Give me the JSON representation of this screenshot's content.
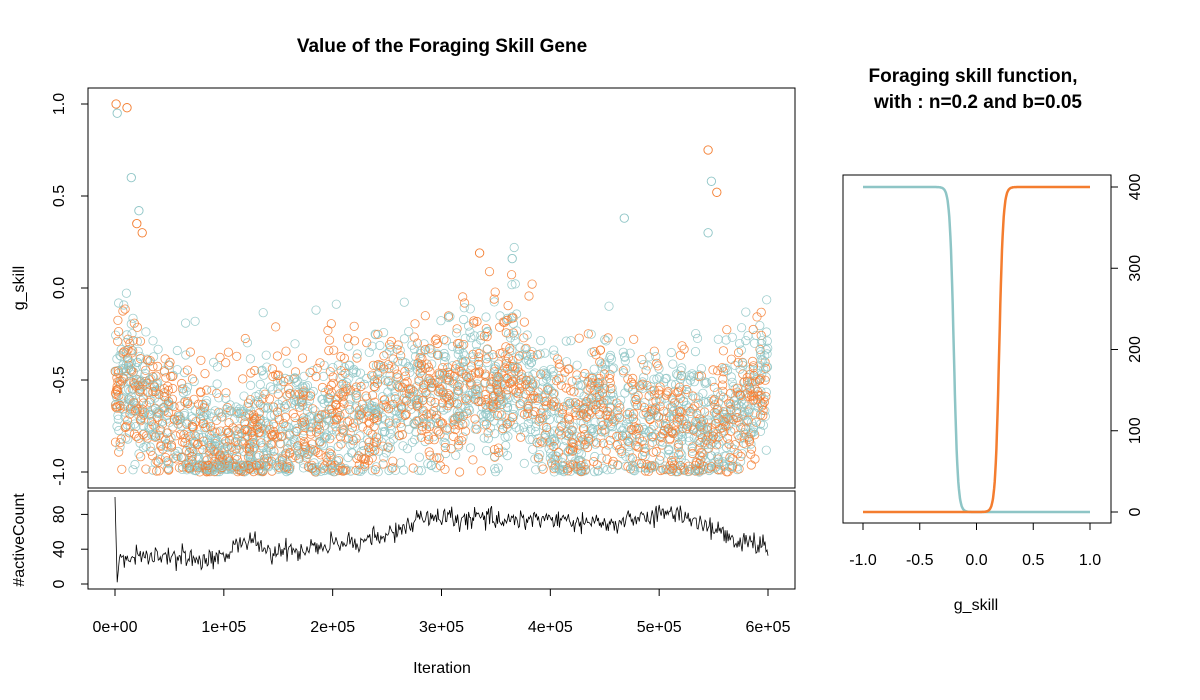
{
  "main_plot": {
    "title": "Value of the Foraging Skill Gene",
    "ylabel": "g_skill",
    "xlabel": "Iteration"
  },
  "side_plot": {
    "title_line1": "Foraging skill function,",
    "title_line2": "with : n=0.2 and b=0.05",
    "xlabel": "g_skill"
  },
  "colors": {
    "orange": "#F47D2F",
    "teal": "#8EC5C6",
    "line": "#000000"
  },
  "chart_data": [
    {
      "type": "scatter",
      "title": "Value of the Foraging Skill Gene",
      "xlabel": "Iteration",
      "ylabel": "g_skill",
      "xlim": [
        0,
        600000
      ],
      "ylim": [
        -1.0,
        1.0
      ],
      "x_ticks": [
        0,
        100000,
        200000,
        300000,
        400000,
        500000,
        600000
      ],
      "x_tick_labels": [
        "0e+00",
        "1e+05",
        "2e+05",
        "3e+05",
        "4e+05",
        "5e+05",
        "6e+05"
      ],
      "y_ticks": [
        -1.0,
        -0.5,
        0.0,
        0.5,
        1.0
      ],
      "y_tick_labels": [
        "-1.0",
        "-0.5",
        "0.0",
        "0.5",
        "1.0"
      ],
      "series": [
        {
          "color": "#F47D2F"
        },
        {
          "color": "#8EC5C6"
        }
      ],
      "trend_points": [
        [
          0,
          -0.6
        ],
        [
          10000,
          -0.5
        ],
        [
          25000,
          -0.6
        ],
        [
          50000,
          -0.7
        ],
        [
          75000,
          -0.85
        ],
        [
          100000,
          -0.9
        ],
        [
          125000,
          -0.8
        ],
        [
          150000,
          -0.75
        ],
        [
          175000,
          -0.8
        ],
        [
          200000,
          -0.75
        ],
        [
          225000,
          -0.7
        ],
        [
          250000,
          -0.65
        ],
        [
          275000,
          -0.55
        ],
        [
          300000,
          -0.6
        ],
        [
          325000,
          -0.5
        ],
        [
          350000,
          -0.55
        ],
        [
          375000,
          -0.45
        ],
        [
          400000,
          -0.7
        ],
        [
          425000,
          -0.8
        ],
        [
          450000,
          -0.6
        ],
        [
          475000,
          -0.75
        ],
        [
          500000,
          -0.7
        ],
        [
          525000,
          -0.75
        ],
        [
          550000,
          -0.8
        ],
        [
          575000,
          -0.7
        ],
        [
          600000,
          -0.45
        ]
      ],
      "outliers": [
        [
          1000,
          1.0
        ],
        [
          2000,
          0.95
        ],
        [
          11000,
          0.98
        ],
        [
          15000,
          0.6
        ],
        [
          20000,
          0.35
        ],
        [
          22000,
          0.42
        ],
        [
          25000,
          0.3
        ],
        [
          468000,
          0.38
        ],
        [
          545000,
          0.75
        ],
        [
          548000,
          0.58
        ],
        [
          553000,
          0.52
        ],
        [
          545000,
          0.3
        ],
        [
          335000,
          0.19
        ],
        [
          365000,
          0.16
        ]
      ]
    },
    {
      "type": "line",
      "xlim": [
        0,
        600000
      ],
      "ylim": [
        0,
        100
      ],
      "ylabel": "#activeCount",
      "y_ticks": [
        0,
        40,
        80
      ],
      "y_tick_labels": [
        "0",
        "40",
        "80"
      ],
      "keypoints": [
        [
          0,
          100
        ],
        [
          2000,
          2
        ],
        [
          5000,
          30
        ],
        [
          50000,
          30
        ],
        [
          100000,
          30
        ],
        [
          110000,
          45
        ],
        [
          120000,
          50
        ],
        [
          150000,
          35
        ],
        [
          200000,
          45
        ],
        [
          250000,
          55
        ],
        [
          280000,
          75
        ],
        [
          300000,
          75
        ],
        [
          350000,
          75
        ],
        [
          400000,
          75
        ],
        [
          450000,
          68
        ],
        [
          500000,
          80
        ],
        [
          520000,
          80
        ],
        [
          550000,
          65
        ],
        [
          570000,
          48
        ],
        [
          600000,
          45
        ]
      ]
    },
    {
      "type": "line",
      "title": "Foraging skill function,\nwith : n=0.2 and b=0.05",
      "xlabel": "g_skill",
      "xlim": [
        -1.0,
        1.0
      ],
      "ylim": [
        0,
        400
      ],
      "x_ticks": [
        -1.0,
        -0.5,
        0.0,
        0.5,
        1.0
      ],
      "x_tick_labels": [
        "-1.0",
        "-0.5",
        "0.0",
        "0.5",
        "1.0"
      ],
      "y_ticks": [
        0,
        100,
        200,
        300,
        400
      ],
      "y_tick_labels": [
        "0",
        "100",
        "200",
        "300",
        "400"
      ],
      "n": 0.2,
      "b": 0.05,
      "series": [
        {
          "color": "#8EC5C6",
          "shape": "decreasing"
        },
        {
          "color": "#F47D2F",
          "shape": "increasing"
        }
      ]
    }
  ]
}
